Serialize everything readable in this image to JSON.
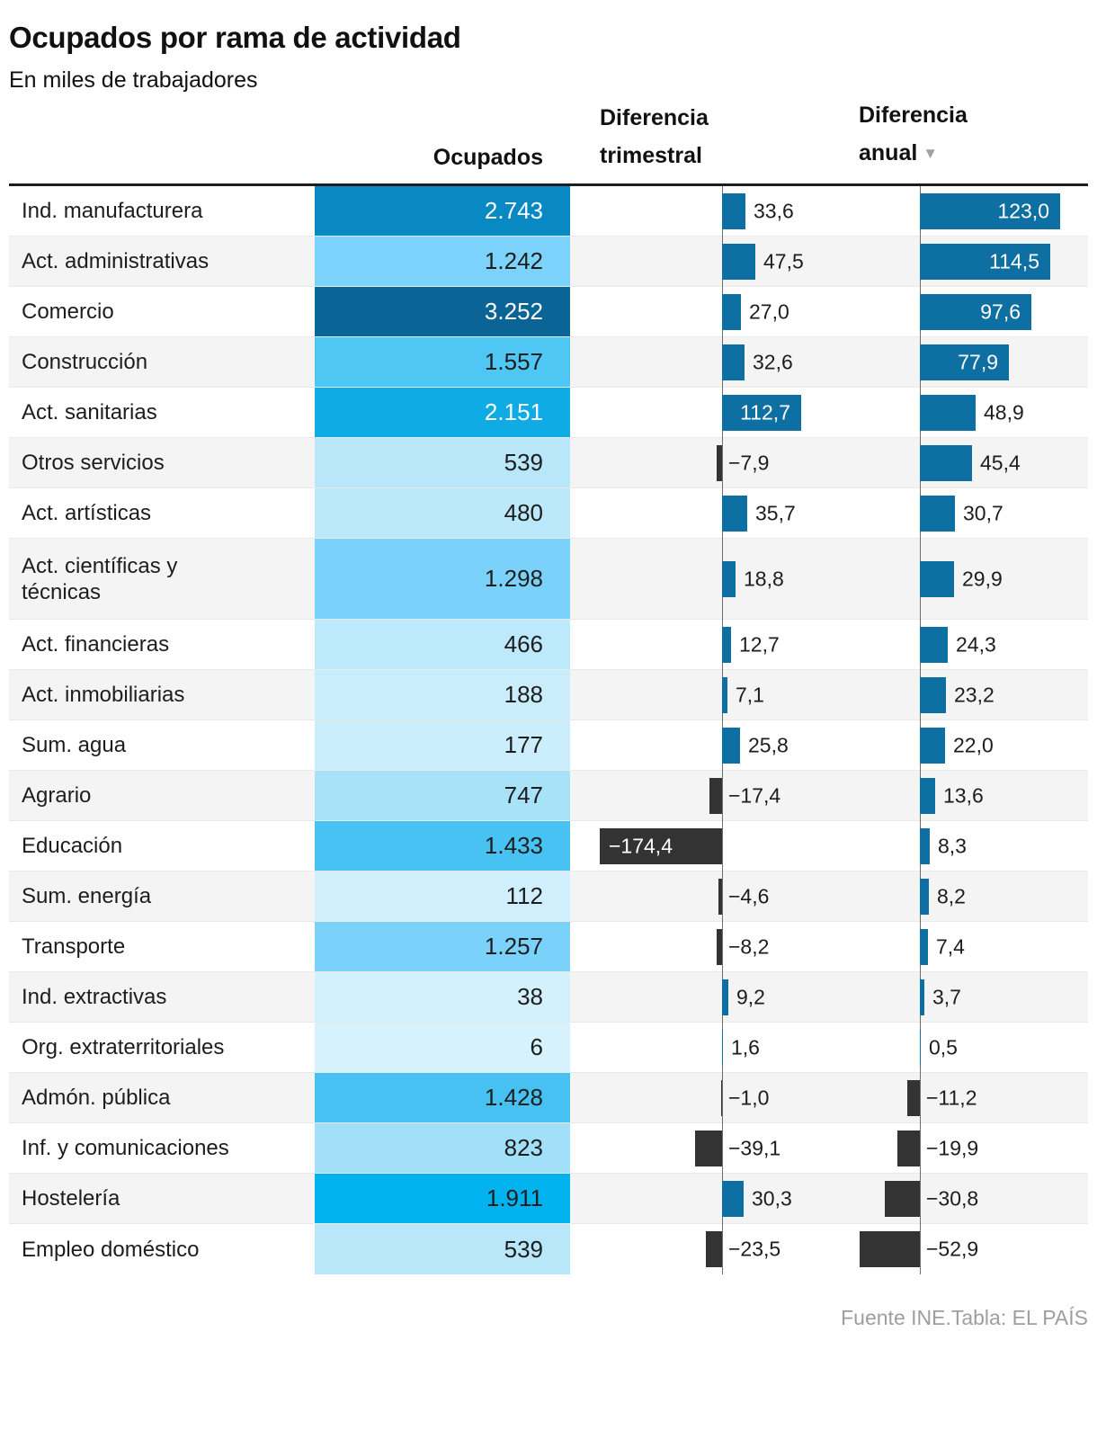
{
  "page": {
    "title": "Ocupados por rama de actividad",
    "subtitle": "En miles de trabajadores",
    "footer": "Fuente INE.Tabla: EL PAÍS"
  },
  "header": {
    "ocupados": "Ocupados",
    "trimestral": "Diferencia trimestral",
    "anual": "Diferencia anual",
    "sort_icon": "▼"
  },
  "colors": {
    "positive_bar": "#0e6fa3",
    "negative_bar": "#333333",
    "baseline": "#6e6e6e",
    "row_stripe": "#f4f4f4",
    "top_border": "#1d1d1d",
    "footer_text": "#9e9e9e"
  },
  "chart_data": {
    "type": "table",
    "title": "Ocupados por rama de actividad",
    "unit": "miles de trabajadores",
    "columns": [
      "Ocupados",
      "Diferencia trimestral",
      "Diferencia anual"
    ],
    "sorted_column": "Diferencia anual",
    "sort_direction": "descending",
    "rows": [
      {
        "label": "Ind. manufacturera",
        "ocupados": 2743,
        "ocupados_display": "2.743",
        "cell_color": "#0989c4",
        "value_on_dark": true,
        "trimestral": 33.6,
        "trimestral_display": "33,6",
        "anual": 123.0,
        "anual_display": "123,0"
      },
      {
        "label": "Act. administrativas",
        "ocupados": 1242,
        "ocupados_display": "1.242",
        "cell_color": "#7bd3fb",
        "value_on_dark": false,
        "trimestral": 47.5,
        "trimestral_display": "47,5",
        "anual": 114.5,
        "anual_display": "114,5"
      },
      {
        "label": "Comercio",
        "ocupados": 3252,
        "ocupados_display": "3.252",
        "cell_color": "#0a6495",
        "value_on_dark": true,
        "trimestral": 27.0,
        "trimestral_display": "27,0",
        "anual": 97.6,
        "anual_display": "97,6"
      },
      {
        "label": "Construcción",
        "ocupados": 1557,
        "ocupados_display": "1.557",
        "cell_color": "#4ec7f4",
        "value_on_dark": false,
        "trimestral": 32.6,
        "trimestral_display": "32,6",
        "anual": 77.9,
        "anual_display": "77,9"
      },
      {
        "label": "Act. sanitarias",
        "ocupados": 2151,
        "ocupados_display": "2.151",
        "cell_color": "#0fabe4",
        "value_on_dark": true,
        "trimestral": 112.7,
        "trimestral_display": "112,7",
        "anual": 48.9,
        "anual_display": "48,9"
      },
      {
        "label": "Otros servicios",
        "ocupados": 539,
        "ocupados_display": "539",
        "cell_color": "#b8e7fa",
        "value_on_dark": false,
        "trimestral": -7.9,
        "trimestral_display": "−7,9",
        "anual": 45.4,
        "anual_display": "45,4"
      },
      {
        "label": "Act. artísticas",
        "ocupados": 480,
        "ocupados_display": "480",
        "cell_color": "#bbe9fb",
        "value_on_dark": false,
        "trimestral": 35.7,
        "trimestral_display": "35,7",
        "anual": 30.7,
        "anual_display": "30,7"
      },
      {
        "label": "Act. científicas y técnicas",
        "ocupados": 1298,
        "ocupados_display": "1.298",
        "cell_color": "#7ad2fb",
        "value_on_dark": false,
        "trimestral": 18.8,
        "trimestral_display": "18,8",
        "anual": 29.9,
        "anual_display": "29,9"
      },
      {
        "label": "Act. financieras",
        "ocupados": 466,
        "ocupados_display": "466",
        "cell_color": "#bce9fb",
        "value_on_dark": false,
        "trimestral": 12.7,
        "trimestral_display": "12,7",
        "anual": 24.3,
        "anual_display": "24,3"
      },
      {
        "label": "Act. inmobiliarias",
        "ocupados": 188,
        "ocupados_display": "188",
        "cell_color": "#caedfc",
        "value_on_dark": false,
        "trimestral": 7.1,
        "trimestral_display": "7,1",
        "anual": 23.2,
        "anual_display": "23,2"
      },
      {
        "label": "Sum. agua",
        "ocupados": 177,
        "ocupados_display": "177",
        "cell_color": "#cbeefc",
        "value_on_dark": false,
        "trimestral": 25.8,
        "trimestral_display": "25,8",
        "anual": 22.0,
        "anual_display": "22,0"
      },
      {
        "label": "Agrario",
        "ocupados": 747,
        "ocupados_display": "747",
        "cell_color": "#a8e2f9",
        "value_on_dark": false,
        "trimestral": -17.4,
        "trimestral_display": "−17,4",
        "anual": 13.6,
        "anual_display": "13,6"
      },
      {
        "label": "Educación",
        "ocupados": 1433,
        "ocupados_display": "1.433",
        "cell_color": "#47c2f2",
        "value_on_dark": false,
        "trimestral": -174.4,
        "trimestral_display": "−174,4",
        "anual": 8.3,
        "anual_display": "8,3"
      },
      {
        "label": "Sum. energía",
        "ocupados": 112,
        "ocupados_display": "112",
        "cell_color": "#d0effc",
        "value_on_dark": false,
        "trimestral": -4.6,
        "trimestral_display": "−4,6",
        "anual": 8.2,
        "anual_display": "8,2"
      },
      {
        "label": "Transporte",
        "ocupados": 1257,
        "ocupados_display": "1.257",
        "cell_color": "#7ad2fb",
        "value_on_dark": false,
        "trimestral": -8.2,
        "trimestral_display": "−8,2",
        "anual": 7.4,
        "anual_display": "7,4"
      },
      {
        "label": "Ind. extractivas",
        "ocupados": 38,
        "ocupados_display": "38",
        "cell_color": "#d3f1fd",
        "value_on_dark": false,
        "trimestral": 9.2,
        "trimestral_display": "9,2",
        "anual": 3.7,
        "anual_display": "3,7"
      },
      {
        "label": "Org. extraterritoriales",
        "ocupados": 6,
        "ocupados_display": "6",
        "cell_color": "#d6f2fd",
        "value_on_dark": false,
        "trimestral": 1.6,
        "trimestral_display": "1,6",
        "anual": 0.5,
        "anual_display": "0,5"
      },
      {
        "label": "Admón. pública",
        "ocupados": 1428,
        "ocupados_display": "1.428",
        "cell_color": "#46c1f2",
        "value_on_dark": false,
        "trimestral": -1.0,
        "trimestral_display": "−1,0",
        "anual": -11.2,
        "anual_display": "−11,2"
      },
      {
        "label": "Inf. y comunicaciones",
        "ocupados": 823,
        "ocupados_display": "823",
        "cell_color": "#a2e0f9",
        "value_on_dark": false,
        "trimestral": -39.1,
        "trimestral_display": "−39,1",
        "anual": -19.9,
        "anual_display": "−19,9"
      },
      {
        "label": "Hostelería",
        "ocupados": 1911,
        "ocupados_display": "1.911",
        "cell_color": "#00b3ef",
        "value_on_dark": false,
        "trimestral": 30.3,
        "trimestral_display": "30,3",
        "anual": -30.8,
        "anual_display": "−30,8"
      },
      {
        "label": "Empleo doméstico",
        "ocupados": 539,
        "ocupados_display": "539",
        "cell_color": "#b8e7fa",
        "value_on_dark": false,
        "trimestral": -23.5,
        "trimestral_display": "−23,5",
        "anual": -52.9,
        "anual_display": "−52,9"
      }
    ]
  }
}
